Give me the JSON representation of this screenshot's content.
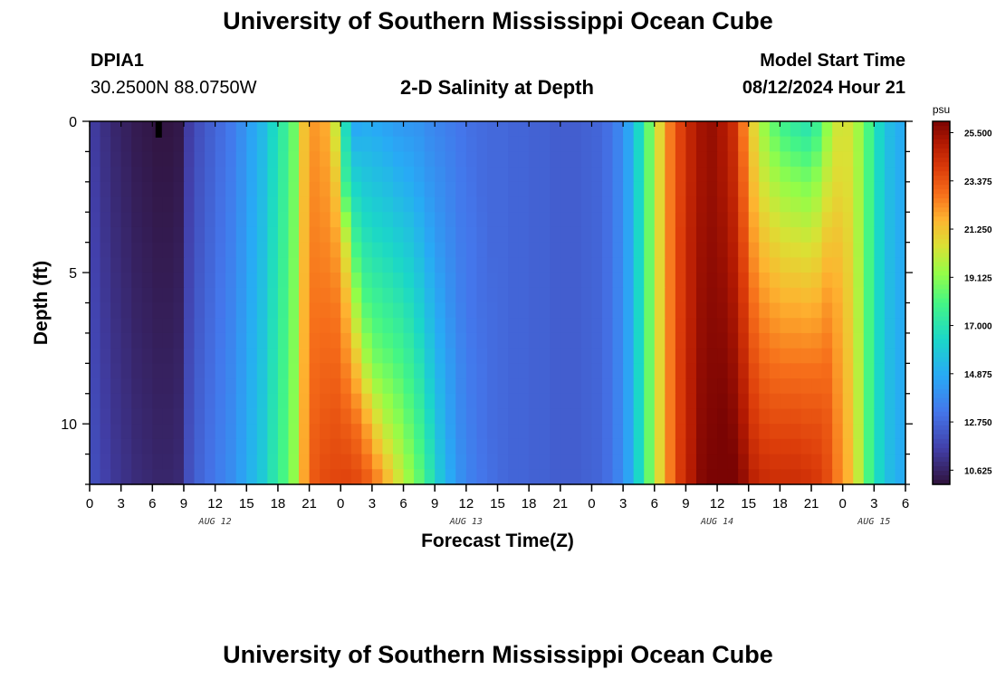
{
  "page": {
    "title": "University of Southern Mississippi Ocean Cube",
    "footer_title": "University of Southern Mississippi Ocean Cube",
    "station_id": "DPIA1",
    "coordinates": "30.2500N  88.0750W",
    "plot_title": "2-D Salinity at Depth",
    "model_start_label": "Model Start Time",
    "model_start_time": "08/12/2024 Hour 21"
  },
  "chart_data": {
    "type": "heatmap",
    "title": "2-D Salinity at Depth",
    "xlabel": "Forecast Time(Z)",
    "ylabel": "Depth (ft)",
    "colorbar_unit": "psu",
    "colorbar_ticks": [
      "25.500",
      "23.375",
      "21.250",
      "19.125",
      "17.000",
      "14.875",
      "12.750",
      "10.625"
    ],
    "color_range": [
      10.0,
      26.0
    ],
    "x_range_hours": [
      0,
      78
    ],
    "y_range_ft": [
      0,
      12
    ],
    "x_tick_hours": [
      0,
      3,
      6,
      9,
      12,
      15,
      18,
      21,
      24,
      27,
      30,
      33,
      36,
      39,
      42,
      45,
      48,
      51,
      54,
      57,
      60,
      63,
      66,
      69,
      72,
      75,
      78
    ],
    "x_tick_labels": [
      "0",
      "3",
      "6",
      "9",
      "12",
      "15",
      "18",
      "21",
      "0",
      "3",
      "6",
      "9",
      "12",
      "15",
      "18",
      "21",
      "0",
      "3",
      "6",
      "9",
      "12",
      "15",
      "18",
      "21",
      "0",
      "3",
      "6"
    ],
    "y_ticks": [
      0,
      5,
      10
    ],
    "y_tick_labels": [
      "0",
      "5",
      "10"
    ],
    "date_labels": [
      {
        "hour": 12,
        "label": "AUG 12"
      },
      {
        "hour": 36,
        "label": "AUG 13"
      },
      {
        "hour": 60,
        "label": "AUG 14"
      },
      {
        "hour": 75,
        "label": "AUG 15"
      }
    ],
    "time_hours": [
      0,
      1,
      2,
      3,
      4,
      5,
      6,
      7,
      8,
      9,
      10,
      11,
      12,
      13,
      14,
      15,
      16,
      17,
      18,
      19,
      20,
      21,
      22,
      23,
      24,
      25,
      26,
      27,
      28,
      29,
      30,
      31,
      32,
      33,
      34,
      35,
      36,
      37,
      38,
      39,
      40,
      41,
      42,
      43,
      44,
      45,
      46,
      47,
      48,
      49,
      50,
      51,
      52,
      53,
      54,
      55,
      56,
      57,
      58,
      59,
      60,
      61,
      62,
      63,
      64,
      65,
      66,
      67,
      68,
      69,
      70,
      71,
      72,
      73,
      74,
      75,
      76,
      77,
      78
    ],
    "depth_ft": [
      0,
      2,
      4,
      6,
      8,
      10,
      12
    ],
    "salinity_by_depth": [
      [
        11.4,
        11.0,
        10.7,
        10.5,
        10.3,
        10.2,
        10.1,
        10.1,
        10.2,
        11.5,
        12.1,
        12.5,
        12.9,
        13.3,
        13.9,
        14.6,
        15.3,
        16.4,
        17.4,
        18.6,
        21.3,
        22.1,
        21.8,
        20.2,
        16.5,
        14.6,
        14.8,
        14.7,
        14.5,
        14.3,
        14.2,
        14.1,
        13.8,
        13.6,
        13.4,
        13.2,
        13.0,
        12.9,
        12.8,
        12.8,
        12.7,
        12.7,
        12.6,
        12.6,
        12.5,
        12.5,
        12.5,
        12.6,
        12.7,
        13.0,
        13.6,
        14.6,
        16.4,
        18.6,
        20.8,
        22.6,
        23.8,
        24.7,
        25.3,
        25.5,
        25.1,
        24.4,
        22.6,
        20.8,
        19.3,
        18.3,
        17.6,
        17.2,
        16.9,
        17.5,
        19.1,
        20.3,
        20.4,
        19.5,
        18.0,
        16.4,
        15.4,
        14.9,
        14.8
      ],
      [
        11.5,
        11.1,
        10.8,
        10.6,
        10.4,
        10.3,
        10.2,
        10.2,
        10.3,
        11.6,
        12.2,
        12.6,
        13.0,
        13.4,
        14.0,
        14.7,
        15.4,
        16.5,
        17.5,
        18.7,
        21.4,
        22.3,
        22.1,
        21.2,
        17.5,
        16.2,
        15.8,
        15.6,
        15.4,
        15.1,
        14.9,
        14.6,
        14.2,
        13.9,
        13.6,
        13.3,
        13.1,
        12.9,
        12.8,
        12.8,
        12.7,
        12.7,
        12.6,
        12.6,
        12.5,
        12.5,
        12.5,
        12.6,
        12.7,
        13.0,
        13.6,
        14.6,
        16.4,
        18.6,
        20.8,
        22.6,
        23.8,
        24.7,
        25.3,
        25.5,
        25.2,
        24.6,
        23.1,
        21.4,
        20.3,
        19.7,
        19.3,
        19.1,
        18.9,
        19.3,
        20.2,
        20.7,
        20.6,
        19.6,
        18.0,
        16.4,
        15.4,
        14.9,
        14.8
      ],
      [
        11.6,
        11.2,
        10.9,
        10.7,
        10.5,
        10.4,
        10.3,
        10.3,
        10.4,
        11.7,
        12.3,
        12.7,
        13.1,
        13.5,
        14.1,
        14.8,
        15.5,
        16.6,
        17.6,
        18.8,
        21.5,
        22.5,
        22.4,
        22.0,
        20.3,
        17.7,
        16.9,
        16.6,
        16.4,
        16.1,
        15.8,
        15.3,
        14.7,
        14.2,
        13.8,
        13.4,
        13.2,
        13.0,
        12.8,
        12.8,
        12.7,
        12.7,
        12.6,
        12.6,
        12.5,
        12.5,
        12.5,
        12.6,
        12.7,
        13.0,
        13.6,
        14.6,
        16.4,
        18.6,
        20.8,
        22.6,
        23.9,
        24.8,
        25.4,
        25.6,
        25.4,
        24.9,
        23.6,
        22.1,
        21.3,
        20.9,
        20.6,
        20.5,
        20.4,
        20.6,
        21.2,
        21.3,
        20.9,
        19.7,
        18.0,
        16.4,
        15.4,
        14.9,
        14.8
      ],
      [
        11.7,
        11.3,
        11.0,
        10.8,
        10.6,
        10.5,
        10.4,
        10.4,
        10.5,
        11.8,
        12.4,
        12.8,
        13.2,
        13.6,
        14.2,
        14.9,
        15.6,
        16.7,
        17.7,
        18.9,
        21.6,
        22.7,
        22.7,
        22.6,
        21.6,
        19.5,
        18.1,
        17.7,
        17.4,
        17.1,
        16.7,
        16.1,
        15.3,
        14.6,
        14.0,
        13.5,
        13.2,
        13.0,
        12.9,
        12.8,
        12.7,
        12.7,
        12.6,
        12.6,
        12.5,
        12.5,
        12.5,
        12.6,
        12.7,
        13.0,
        13.6,
        14.6,
        16.4,
        18.6,
        20.8,
        22.6,
        23.9,
        24.8,
        25.5,
        25.7,
        25.6,
        25.2,
        24.1,
        22.8,
        22.2,
        21.9,
        21.7,
        21.7,
        21.6,
        21.7,
        22.1,
        21.8,
        21.1,
        19.8,
        18.0,
        16.4,
        15.4,
        14.9,
        14.8
      ],
      [
        11.8,
        11.4,
        11.1,
        10.9,
        10.7,
        10.6,
        10.5,
        10.5,
        10.6,
        11.9,
        12.5,
        12.9,
        13.3,
        13.7,
        14.3,
        15.0,
        15.7,
        16.8,
        17.8,
        19.0,
        21.7,
        22.9,
        23.0,
        23.0,
        22.4,
        21.3,
        19.7,
        18.8,
        18.5,
        18.1,
        17.6,
        16.9,
        15.9,
        15.0,
        14.3,
        13.7,
        13.3,
        13.1,
        12.9,
        12.8,
        12.7,
        12.7,
        12.6,
        12.6,
        12.5,
        12.5,
        12.5,
        12.6,
        12.7,
        13.0,
        13.6,
        14.6,
        16.4,
        18.6,
        20.8,
        22.6,
        24.0,
        24.9,
        25.6,
        25.8,
        25.8,
        25.5,
        24.6,
        23.5,
        23.0,
        22.8,
        22.7,
        22.7,
        22.7,
        22.7,
        22.8,
        22.1,
        21.3,
        19.9,
        18.0,
        16.4,
        15.4,
        14.9,
        14.8
      ],
      [
        11.9,
        11.5,
        11.2,
        11.0,
        10.8,
        10.7,
        10.6,
        10.6,
        10.7,
        12.0,
        12.6,
        13.0,
        13.4,
        13.8,
        14.4,
        15.1,
        15.8,
        16.9,
        17.9,
        19.1,
        21.8,
        23.1,
        23.3,
        23.4,
        23.2,
        22.8,
        21.9,
        20.7,
        19.8,
        19.2,
        18.5,
        17.7,
        16.6,
        15.4,
        14.5,
        13.8,
        13.4,
        13.1,
        12.9,
        12.8,
        12.7,
        12.7,
        12.6,
        12.6,
        12.5,
        12.5,
        12.5,
        12.6,
        12.7,
        13.0,
        13.6,
        14.6,
        16.4,
        18.6,
        20.8,
        22.6,
        24.0,
        24.9,
        25.7,
        25.9,
        26.0,
        25.8,
        25.1,
        24.1,
        23.7,
        23.6,
        23.6,
        23.6,
        23.5,
        23.5,
        23.3,
        22.4,
        21.5,
        20.0,
        18.0,
        16.4,
        15.4,
        14.9,
        14.8
      ],
      [
        12.0,
        11.6,
        11.3,
        11.1,
        10.9,
        10.8,
        10.7,
        10.7,
        10.8,
        12.1,
        12.7,
        13.1,
        13.5,
        13.9,
        14.5,
        15.2,
        15.9,
        17.0,
        18.0,
        19.2,
        21.9,
        23.3,
        23.6,
        23.7,
        23.8,
        23.7,
        23.3,
        22.6,
        21.6,
        20.5,
        19.5,
        18.5,
        17.2,
        15.8,
        14.8,
        14.0,
        13.5,
        13.2,
        13.0,
        12.8,
        12.7,
        12.7,
        12.6,
        12.6,
        12.5,
        12.5,
        12.5,
        12.6,
        12.7,
        13.0,
        13.6,
        14.6,
        16.4,
        18.6,
        20.8,
        22.6,
        24.1,
        25.0,
        25.8,
        26.0,
        26.2,
        26.1,
        25.6,
        24.8,
        24.5,
        24.4,
        24.4,
        24.4,
        24.3,
        24.1,
        23.6,
        22.6,
        21.7,
        20.1,
        18.0,
        16.4,
        15.4,
        14.9,
        14.8
      ]
    ]
  }
}
